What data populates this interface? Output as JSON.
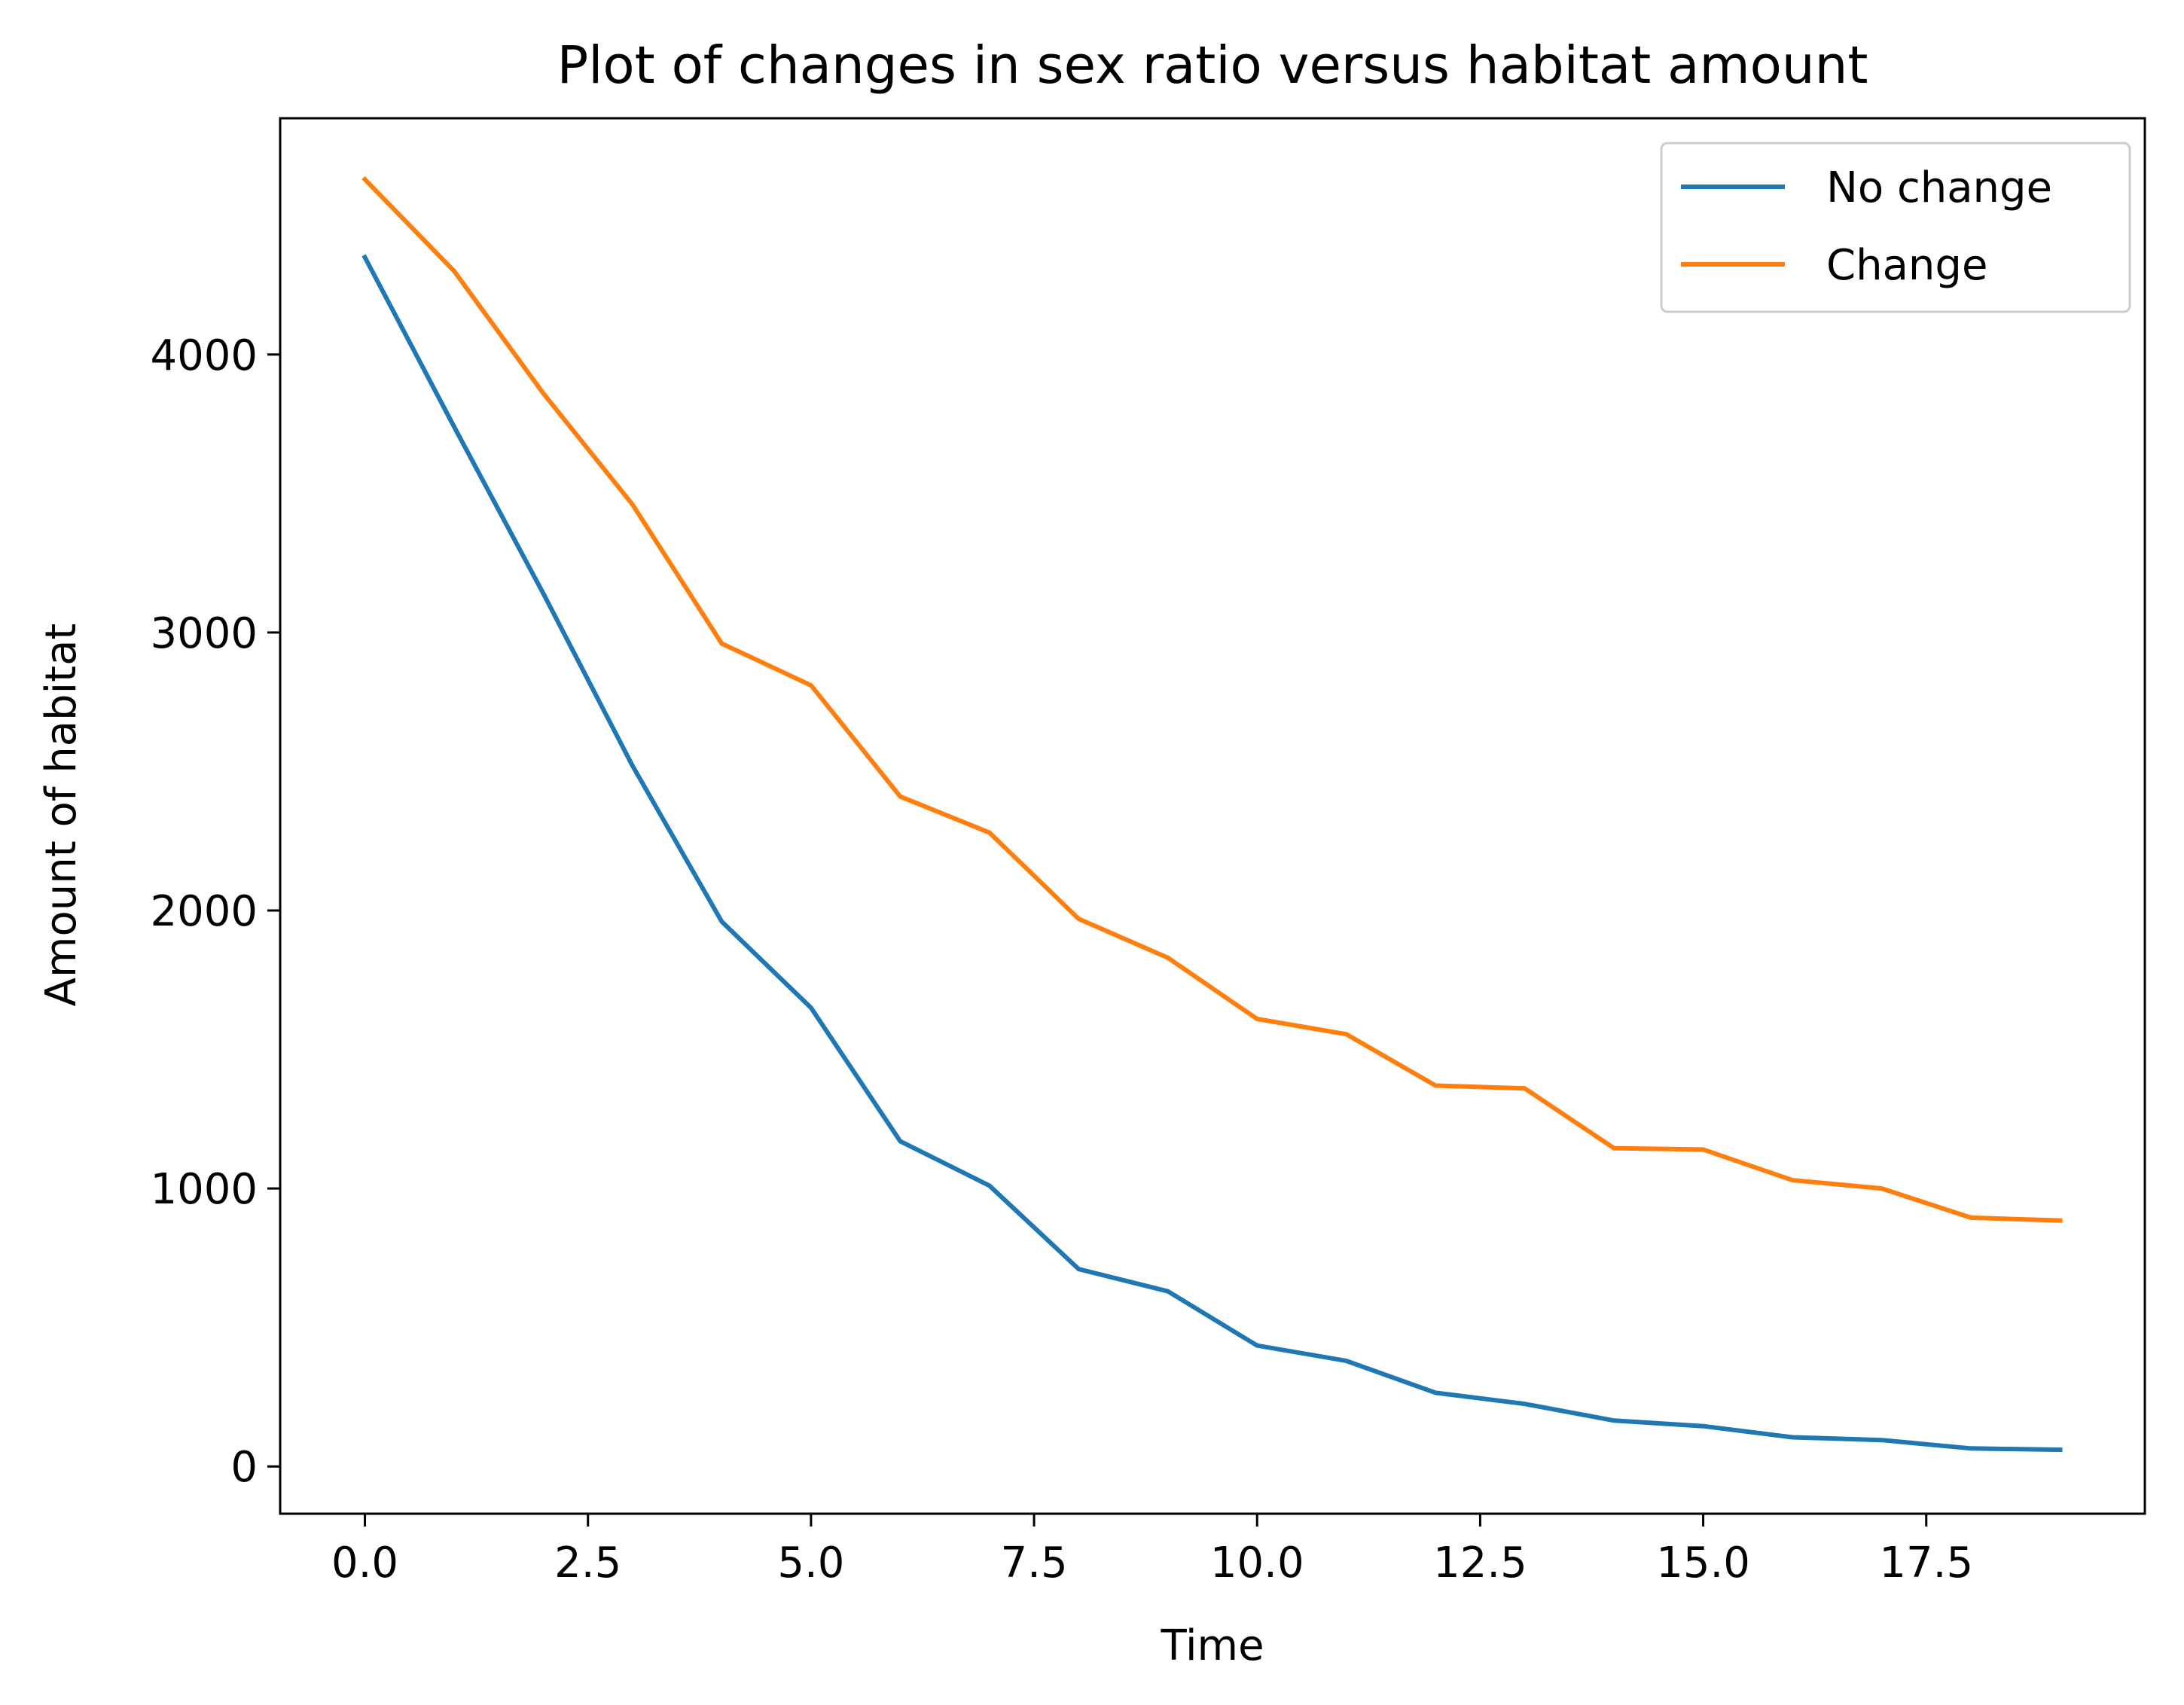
{
  "chart_data": {
    "type": "line",
    "title": "Plot of changes in sex ratio versus habitat amount",
    "xlabel": "Time",
    "ylabel": "Amount of habitat",
    "x": [
      0,
      1,
      2,
      3,
      4,
      5,
      6,
      7,
      8,
      9,
      10,
      11,
      12,
      13,
      14,
      15,
      16,
      17,
      18,
      19
    ],
    "xlim": [
      -0.95,
      19.95
    ],
    "ylim": [
      -170,
      4850
    ],
    "xticks": [
      0.0,
      2.5,
      5.0,
      7.5,
      10.0,
      12.5,
      15.0,
      17.5
    ],
    "xtick_labels": [
      "0.0",
      "2.5",
      "5.0",
      "7.5",
      "10.0",
      "12.5",
      "15.0",
      "17.5"
    ],
    "yticks": [
      0,
      1000,
      2000,
      3000,
      4000
    ],
    "ytick_labels": [
      "0",
      "1000",
      "2000",
      "3000",
      "4000"
    ],
    "grid": false,
    "legend_position": "top-right",
    "series": [
      {
        "name": "No change",
        "color": "#1f77b4",
        "values": [
          4350,
          3740,
          3140,
          2520,
          1960,
          1650,
          1170,
          1010,
          710,
          630,
          435,
          380,
          265,
          225,
          165,
          145,
          105,
          95,
          65,
          60
        ]
      },
      {
        "name": "Change",
        "color": "#ff7f0e",
        "values": [
          4630,
          4300,
          3860,
          3460,
          2960,
          2810,
          2410,
          2280,
          1970,
          1830,
          1610,
          1555,
          1370,
          1360,
          1145,
          1140,
          1030,
          1000,
          895,
          885
        ]
      }
    ]
  }
}
